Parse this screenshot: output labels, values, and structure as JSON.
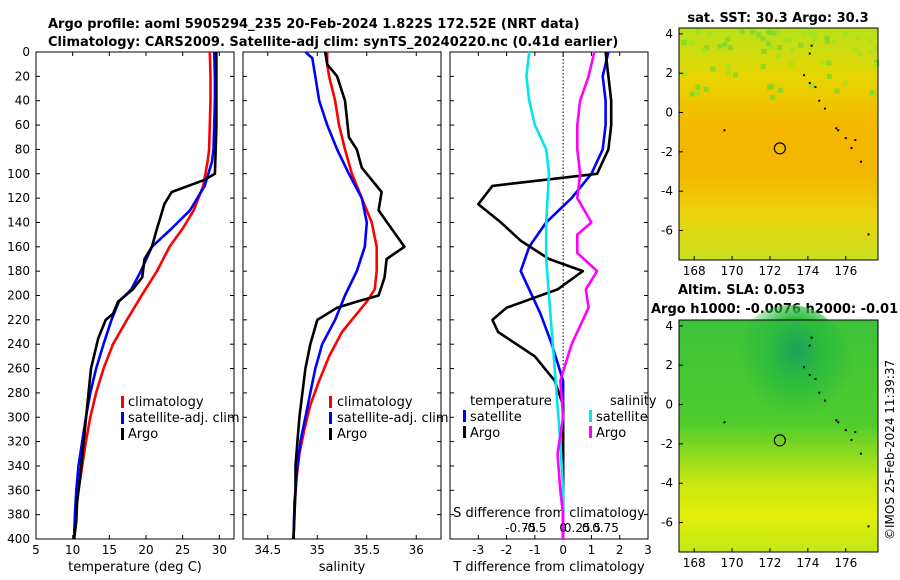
{
  "header": {
    "title_line1": "Argo profile: aoml 5905294_235 20-Feb-2024 1.822S 172.52E (NRT data)",
    "title_line2": "Climatology: CARS2009. Satellite-adj clim: synTS_20240220.nc (0.41d earlier)"
  },
  "timestamp": "©IMOS 25-Feb-2024 11:39:37",
  "colors": {
    "climatology": "#ff0000",
    "satellite": "#0000ff",
    "argo": "#000000",
    "sat_salinity": "#00e5ee",
    "argo_salinity": "#ff00ff",
    "sst_base": "#f2c800",
    "sla_base": "#9be000"
  },
  "chart_data": [
    {
      "id": "temperature",
      "type": "line",
      "title": "",
      "xlabel": "temperature (deg C)",
      "ylabel": "",
      "xlim": [
        5,
        32
      ],
      "ylim": [
        400,
        0
      ],
      "xticks": [
        "5",
        "10",
        "15",
        "20",
        "25",
        "30"
      ],
      "xtick_values": [
        5,
        10,
        15,
        20,
        25,
        30
      ],
      "yticks": [
        "0",
        "20",
        "40",
        "60",
        "80",
        "100",
        "120",
        "140",
        "160",
        "180",
        "200",
        "220",
        "240",
        "260",
        "280",
        "300",
        "320",
        "340",
        "360",
        "380",
        "400"
      ],
      "ytick_values": [
        0,
        20,
        40,
        60,
        80,
        100,
        120,
        140,
        160,
        180,
        200,
        220,
        240,
        260,
        280,
        300,
        320,
        340,
        360,
        380,
        400
      ],
      "legend": [
        "climatology",
        "satellite-adj. clim",
        "Argo"
      ],
      "series": [
        {
          "name": "climatology",
          "color": "#ff0000",
          "x": [
            28.7,
            28.8,
            28.8,
            28.7,
            28.6,
            28.4,
            27.8,
            26.5,
            25.0,
            23.2,
            21.5,
            19.4,
            17.4,
            15.5,
            14.2,
            13.2,
            12.4,
            11.8,
            11.3,
            10.8,
            10.5,
            10.3,
            10.2
          ],
          "y": [
            0,
            20,
            40,
            60,
            80,
            90,
            110,
            130,
            145,
            160,
            180,
            200,
            220,
            240,
            260,
            280,
            300,
            320,
            340,
            360,
            370,
            385,
            400
          ]
        },
        {
          "name": "satellite-adj. clim",
          "color": "#0000ff",
          "x": [
            29.3,
            29.4,
            29.4,
            29.3,
            29.2,
            29.0,
            28.0,
            26.0,
            23.5,
            20.8,
            19.3,
            18.0,
            16.3,
            15.3,
            14.2,
            13.2,
            12.4,
            11.8,
            11.3,
            10.8,
            10.5,
            10.3,
            10.2
          ],
          "y": [
            0,
            20,
            40,
            60,
            80,
            90,
            110,
            130,
            145,
            160,
            180,
            195,
            205,
            220,
            240,
            260,
            280,
            300,
            320,
            340,
            360,
            380,
            400
          ]
        },
        {
          "name": "Argo",
          "color": "#000000",
          "x": [
            29.6,
            29.6,
            29.6,
            29.6,
            29.5,
            29.4,
            28.0,
            23.5,
            22.5,
            22.0,
            21.5,
            20.8,
            19.8,
            19.5,
            18.2,
            16.2,
            15.5,
            14.5,
            13.5,
            12.5,
            12.0,
            11.5,
            11.0,
            10.6,
            10.5,
            10.3,
            10.2
          ],
          "y": [
            0,
            20,
            40,
            60,
            80,
            100,
            105,
            115,
            125,
            135,
            145,
            160,
            170,
            185,
            195,
            205,
            215,
            220,
            235,
            260,
            290,
            320,
            350,
            370,
            385,
            395,
            400
          ]
        }
      ]
    },
    {
      "id": "salinity",
      "type": "line",
      "xlabel": "salinity",
      "xlim": [
        34.25,
        36.25
      ],
      "ylim": [
        400,
        0
      ],
      "xticks": [
        "34.5",
        "35",
        "35.5",
        "36"
      ],
      "xtick_values": [
        34.5,
        35.0,
        35.5,
        36.0
      ],
      "legend": [
        "climatology",
        "satellite-adj. clim",
        "Argo"
      ],
      "series": [
        {
          "name": "climatology",
          "color": "#ff0000",
          "x": [
            35.1,
            35.1,
            35.12,
            35.18,
            35.22,
            35.28,
            35.35,
            35.45,
            35.55,
            35.6,
            35.6,
            35.58,
            35.5,
            35.4,
            35.25,
            35.12,
            35.02,
            34.93,
            34.87,
            34.82,
            34.79,
            34.77,
            34.76
          ],
          "y": [
            0,
            10,
            20,
            40,
            60,
            80,
            100,
            120,
            140,
            160,
            180,
            195,
            205,
            215,
            230,
            250,
            270,
            290,
            310,
            330,
            350,
            375,
            400
          ]
        },
        {
          "name": "satellite-adj. clim",
          "color": "#0000ff",
          "x": [
            34.88,
            34.95,
            34.98,
            35.02,
            35.1,
            35.2,
            35.32,
            35.45,
            35.5,
            35.48,
            35.4,
            35.28,
            35.18,
            35.05,
            34.98,
            34.93,
            34.88,
            34.83,
            34.8,
            34.77,
            34.76
          ],
          "y": [
            0,
            5,
            20,
            40,
            60,
            80,
            100,
            120,
            140,
            160,
            180,
            200,
            220,
            240,
            260,
            280,
            300,
            320,
            340,
            370,
            400
          ]
        },
        {
          "name": "Argo",
          "color": "#000000",
          "x": [
            35.08,
            35.1,
            35.2,
            35.28,
            35.32,
            35.4,
            35.45,
            35.65,
            35.62,
            35.88,
            35.7,
            35.68,
            35.62,
            35.4,
            35.2,
            35.1,
            35.0,
            34.93,
            34.88,
            34.85,
            34.82,
            34.8,
            34.78,
            34.78,
            34.77,
            34.76
          ],
          "y": [
            0,
            10,
            20,
            40,
            70,
            80,
            95,
            115,
            130,
            160,
            170,
            185,
            200,
            205,
            210,
            215,
            220,
            240,
            260,
            280,
            300,
            320,
            340,
            360,
            380,
            400
          ]
        }
      ]
    },
    {
      "id": "difference",
      "type": "line",
      "xlabel": "T difference from climatology",
      "xlabel_top": "S difference from climatology",
      "xlim": [
        -4.0,
        3.0
      ],
      "ylim": [
        400,
        0
      ],
      "xticks": [
        "-3",
        "-2",
        "-1",
        "0",
        "1",
        "2",
        "3"
      ],
      "xtick_values": [
        -3,
        -2,
        -1,
        0,
        1,
        2,
        3
      ],
      "xticks_top": [
        "-0.75",
        "-0.5",
        "0",
        "0.25",
        "0.5",
        "0.75"
      ],
      "xtick_values_top": [
        -0.75,
        -0.5,
        0.0,
        0.25,
        0.5,
        0.75
      ],
      "salinity_scale": "0.5 salinity units per 1 deg C",
      "legend": {
        "temperature_heading": "temperature",
        "salinity_heading": "salinity",
        "temperature_items": [
          "satellite",
          "Argo"
        ],
        "salinity_items": [
          "satellite",
          "Argo"
        ]
      },
      "series": [
        {
          "name": "temperature satellite",
          "color": "#0000ff",
          "x": [
            1.6,
            1.4,
            1.5,
            1.5,
            1.4,
            1.0,
            0.3,
            -0.6,
            -1.2,
            -1.5,
            -1.2,
            -0.8,
            -0.4,
            0.0,
            0.0,
            0.0,
            0.0
          ],
          "y": [
            0,
            20,
            40,
            60,
            80,
            100,
            120,
            140,
            160,
            180,
            195,
            215,
            240,
            270,
            300,
            350,
            400
          ]
        },
        {
          "name": "temperature Argo",
          "color": "#000000",
          "x": [
            1.5,
            1.6,
            1.7,
            1.7,
            1.6,
            1.2,
            -2.5,
            -3.0,
            -2.2,
            -1.5,
            -0.5,
            0.7,
            -0.2,
            -2.0,
            -2.5,
            -2.3,
            -1.0,
            -0.3,
            0.0,
            0.0,
            0.0,
            0.0
          ],
          "y": [
            0,
            20,
            40,
            60,
            80,
            100,
            110,
            125,
            140,
            155,
            170,
            180,
            195,
            210,
            220,
            230,
            250,
            270,
            290,
            320,
            360,
            400
          ]
        },
        {
          "name": "salinity satellite",
          "color": "#00e5ee",
          "x": [
            -1.2,
            -1.3,
            -1.2,
            -1.0,
            -0.6,
            -0.5,
            -0.6,
            -0.6,
            -0.5,
            -0.4,
            -0.3,
            -0.2,
            -0.1,
            0.0,
            0.0
          ],
          "y": [
            0,
            20,
            40,
            60,
            80,
            100,
            140,
            170,
            200,
            230,
            260,
            290,
            320,
            360,
            400
          ]
        },
        {
          "name": "salinity Argo",
          "color": "#ff00ff",
          "x": [
            1.1,
            0.9,
            0.6,
            0.5,
            0.5,
            0.6,
            0.5,
            1.0,
            0.5,
            0.5,
            1.2,
            0.8,
            0.9,
            0.3,
            -0.1,
            0.0,
            -0.2,
            -0.1,
            0.0,
            0.0
          ],
          "y": [
            0,
            20,
            40,
            60,
            80,
            100,
            120,
            140,
            150,
            165,
            180,
            195,
            210,
            240,
            270,
            300,
            330,
            360,
            380,
            400
          ]
        }
      ]
    },
    {
      "id": "sst_map",
      "type": "heatmap",
      "title": "sat. SST: 30.3 Argo: 30.3",
      "xticks": [
        "168",
        "170",
        "172",
        "174",
        "176"
      ],
      "xtick_values": [
        168,
        170,
        172,
        174,
        176
      ],
      "yticks": [
        "4",
        "2",
        "0",
        "-2",
        "-4",
        "-6"
      ],
      "ytick_values": [
        4,
        2,
        0,
        -2,
        -4,
        -6
      ],
      "xlim": [
        167.2,
        177.7
      ],
      "ylim": [
        -7.5,
        4.3
      ],
      "argo_position": [
        172.52,
        -1.822
      ]
    },
    {
      "id": "sla_map",
      "type": "heatmap",
      "title": "Altim. SLA: 0.053",
      "subtitle": "Argo h1000: -0.0076 h2000: -0.01",
      "xticks": [
        "168",
        "170",
        "172",
        "174",
        "176"
      ],
      "xtick_values": [
        168,
        170,
        172,
        174,
        176
      ],
      "yticks": [
        "4",
        "2",
        "0",
        "-2",
        "-4",
        "-6"
      ],
      "ytick_values": [
        4,
        2,
        0,
        -2,
        -4,
        -6
      ],
      "xlim": [
        167.2,
        177.7
      ],
      "ylim": [
        -7.5,
        4.3
      ],
      "argo_position": [
        172.52,
        -1.822
      ]
    }
  ]
}
